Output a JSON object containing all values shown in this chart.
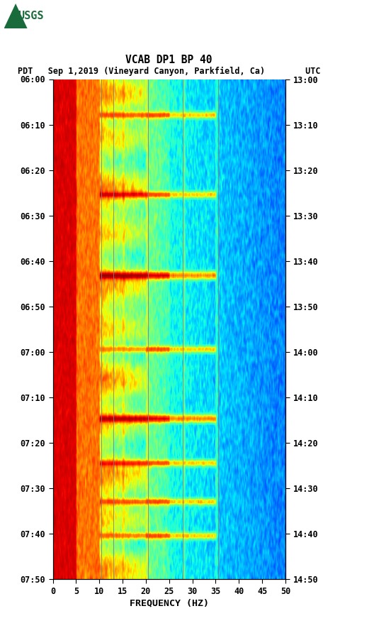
{
  "title_line1": "VCAB DP1 BP 40",
  "title_line2": "PDT   Sep 1,2019 (Vineyard Canyon, Parkfield, Ca)        UTC",
  "xlabel": "FREQUENCY (HZ)",
  "ytick_labels_left": [
    "06:00",
    "06:10",
    "06:20",
    "06:30",
    "06:40",
    "06:50",
    "07:00",
    "07:10",
    "07:20",
    "07:30",
    "07:40",
    "07:50"
  ],
  "ytick_labels_right": [
    "13:00",
    "13:10",
    "13:20",
    "13:30",
    "13:40",
    "13:50",
    "14:00",
    "14:10",
    "14:20",
    "14:30",
    "14:40",
    "14:50"
  ],
  "xtick_labels": [
    "0",
    "5",
    "10",
    "15",
    "20",
    "25",
    "30",
    "35",
    "40",
    "45",
    "50"
  ],
  "colormap": "jet",
  "vline_freqs": [
    10.5,
    13.0,
    20.5,
    28.0,
    35.5
  ],
  "figsize": [
    5.52,
    8.92
  ],
  "dpi": 100,
  "seed": 42,
  "n_times": 220,
  "n_freqs": 300,
  "event_rows": [
    15,
    16,
    50,
    51,
    85,
    86,
    87,
    118,
    119,
    148,
    149,
    150,
    168,
    169,
    185,
    186,
    200,
    201
  ],
  "usgs_color": "#1a6b3c"
}
